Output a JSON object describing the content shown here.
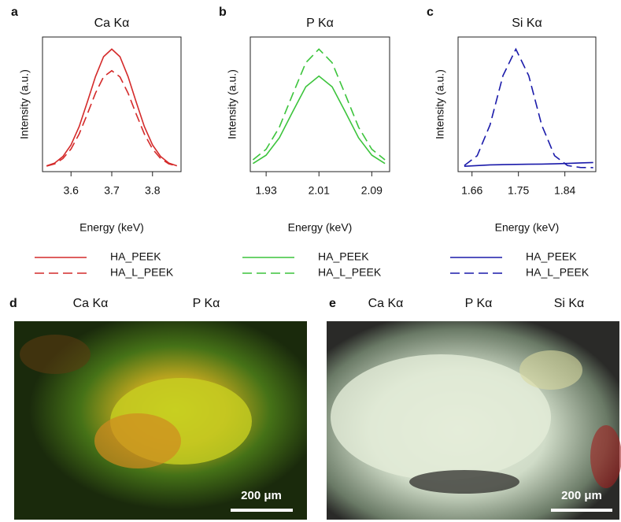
{
  "chart_data": [
    {
      "type": "line",
      "panel": "a",
      "title": "Ca Kα",
      "title_color": "#d42a2a",
      "xlabel": "Energy (keV)",
      "ylabel": "Intensity (a.u.)",
      "x": [
        3.54,
        3.56,
        3.58,
        3.6,
        3.62,
        3.64,
        3.66,
        3.68,
        3.7,
        3.72,
        3.74,
        3.76,
        3.78,
        3.8,
        3.82,
        3.84,
        3.86
      ],
      "series": [
        {
          "name": "HA_PEEK",
          "color": "#d42a2a",
          "linestyle": "solid",
          "values": [
            0.043,
            0.064,
            0.112,
            0.198,
            0.335,
            0.516,
            0.706,
            0.854,
            0.91,
            0.854,
            0.706,
            0.516,
            0.335,
            0.198,
            0.112,
            0.064,
            0.043
          ]
        },
        {
          "name": "HA_L_PEEK",
          "color": "#d42a2a",
          "linestyle": "dashed",
          "values": [
            0.041,
            0.058,
            0.097,
            0.168,
            0.28,
            0.427,
            0.583,
            0.704,
            0.75,
            0.704,
            0.583,
            0.427,
            0.28,
            0.168,
            0.097,
            0.058,
            0.041
          ]
        }
      ],
      "xlim": [
        3.53,
        3.87
      ],
      "xticks": [
        3.6,
        3.7,
        3.8
      ],
      "ylim": [
        0,
        1
      ]
    },
    {
      "type": "line",
      "panel": "b",
      "title": "P Kα",
      "title_color": "#3cc43c",
      "xlabel": "Energy (keV)",
      "ylabel": "Intensity (a.u.)",
      "x": [
        1.91,
        1.93,
        1.95,
        1.97,
        1.99,
        2.01,
        2.03,
        2.05,
        2.07,
        2.09,
        2.11
      ],
      "series": [
        {
          "name": "HA_PEEK",
          "color": "#3cc43c",
          "linestyle": "solid",
          "values": [
            0.06,
            0.122,
            0.251,
            0.443,
            0.63,
            0.71,
            0.63,
            0.443,
            0.251,
            0.122,
            0.06
          ]
        },
        {
          "name": "HA_L_PEEK",
          "color": "#3cc43c",
          "linestyle": "dashed",
          "values": [
            0.088,
            0.166,
            0.33,
            0.572,
            0.809,
            0.91,
            0.809,
            0.572,
            0.33,
            0.166,
            0.088
          ]
        }
      ],
      "xlim": [
        1.906,
        2.117
      ],
      "xticks": [
        1.93,
        2.01,
        2.09
      ],
      "ylim": [
        0,
        1
      ]
    },
    {
      "type": "line",
      "panel": "c",
      "title": "Si Kα",
      "title_color": "#1a1aaa",
      "xlabel": "Energy (keV)",
      "ylabel": "Intensity (a.u.)",
      "x": [
        1.645,
        1.67,
        1.695,
        1.72,
        1.745,
        1.77,
        1.795,
        1.82,
        1.845,
        1.87,
        1.895
      ],
      "series": [
        {
          "name": "HA_PEEK",
          "color": "#1a1aaa",
          "linestyle": "solid",
          "values": [
            0.04,
            0.045,
            0.05,
            0.052,
            0.054,
            0.055,
            0.056,
            0.058,
            0.061,
            0.065,
            0.068
          ]
        },
        {
          "name": "HA_L_PEEK",
          "color": "#1a1aaa",
          "linestyle": "dashed",
          "values": [
            0.045,
            0.118,
            0.347,
            0.712,
            0.91,
            0.712,
            0.347,
            0.118,
            0.045,
            0.031,
            0.03
          ]
        }
      ],
      "xlim": [
        1.633,
        1.9
      ],
      "xticks": [
        1.66,
        1.75,
        1.84
      ],
      "ylim": [
        0,
        1
      ]
    }
  ],
  "images": [
    {
      "panel": "d",
      "channels": [
        {
          "name": "Ca Kα",
          "color": "#e02020"
        },
        {
          "name": "P Kα",
          "color": "#30c030"
        }
      ],
      "scale_bar": "200 μm"
    },
    {
      "panel": "e",
      "channels": [
        {
          "name": "Ca Kα",
          "color": "#e02020"
        },
        {
          "name": "P Kα",
          "color": "#30c030"
        },
        {
          "name": "Si Kα",
          "color": "#2020b0"
        }
      ],
      "scale_bar": "200 μm"
    }
  ]
}
